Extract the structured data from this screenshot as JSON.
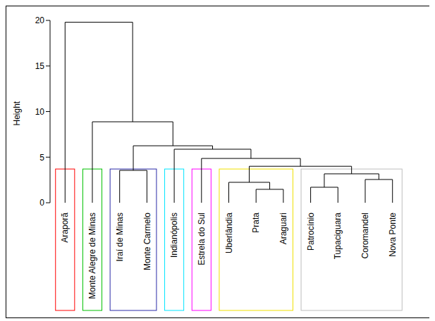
{
  "chart_data": {
    "type": "dendrogram",
    "y_label": "Height",
    "leaves": [
      "Araporã",
      "Monte Alegre de Minas",
      "Iraí de Minas",
      "Monte Carmelo",
      "Indianópolis",
      "Estrela do Sul",
      "Uberlândia",
      "Prata",
      "Araguari",
      "Patrocínio",
      "Tupaciguara",
      "Coromandel",
      "Nova Ponte"
    ],
    "merges": [
      {
        "left": "Prata",
        "right": "Araguari",
        "height": 1.47
      },
      {
        "left": "Patrocínio",
        "right": "Tupaciguara",
        "height": 1.7
      },
      {
        "left": "Uberlândia",
        "right": 0,
        "height": 2.24
      },
      {
        "left": "Coromandel",
        "right": "Nova Ponte",
        "height": 2.55
      },
      {
        "left": 1,
        "right": 3,
        "height": 3.17
      },
      {
        "left": "Iraí de Minas",
        "right": "Monte Carmelo",
        "height": 3.55
      },
      {
        "left": 2,
        "right": 4,
        "height": 4.0
      },
      {
        "left": "Estrela do Sul",
        "right": 6,
        "height": 4.86
      },
      {
        "left": "Indianópolis",
        "right": 7,
        "height": 5.87
      },
      {
        "left": 5,
        "right": 8,
        "height": 6.25
      },
      {
        "left": "Monte Alegre de Minas",
        "right": 9,
        "height": 8.88
      },
      {
        "left": "Araporã",
        "right": 10,
        "height": 19.8
      }
    ],
    "ylim": [
      0,
      20
    ],
    "yticks": [
      0,
      5,
      10,
      15,
      20
    ],
    "cut_height": 3.7,
    "clusters": [
      {
        "leaves": [
          "Araporã"
        ],
        "color": "#ff0000"
      },
      {
        "leaves": [
          "Monte Alegre de Minas"
        ],
        "color": "#00c000"
      },
      {
        "leaves": [
          "Iraí de Minas",
          "Monte Carmelo"
        ],
        "color": "#2a2aa8"
      },
      {
        "leaves": [
          "Indianópolis"
        ],
        "color": "#00e5ff"
      },
      {
        "leaves": [
          "Estrela do Sul"
        ],
        "color": "#ff00ff"
      },
      {
        "leaves": [
          "Uberlândia",
          "Prata",
          "Araguari"
        ],
        "color": "#f0e000"
      },
      {
        "leaves": [
          "Patrocínio",
          "Tupaciguara",
          "Coromandel",
          "Nova Ponte"
        ],
        "color": "#bebebe"
      }
    ]
  }
}
